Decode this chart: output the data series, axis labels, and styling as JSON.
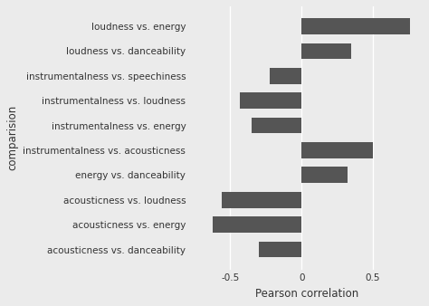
{
  "categories": [
    "acousticness vs. danceability",
    "acousticness vs. energy",
    "acousticness vs. loudness",
    "energy vs. danceability",
    "instrumentalness vs. acousticness",
    "instrumentalness vs. energy",
    "instrumentalness vs. loudness",
    "instrumentalness vs. speechiness",
    "loudness vs. danceability",
    "loudness vs. energy"
  ],
  "values": [
    -0.3,
    -0.62,
    -0.56,
    0.32,
    0.5,
    -0.35,
    -0.43,
    -0.22,
    0.35,
    0.76
  ],
  "bar_color": "#555555",
  "background_color": "#ebebeb",
  "panel_color": "#ebebeb",
  "grid_color": "#ffffff",
  "xlabel": "Pearson correlation",
  "ylabel": "comparision",
  "xlim": [
    -0.78,
    0.85
  ],
  "xticks": [
    -0.5,
    0.0,
    0.5
  ],
  "label_fontsize": 8.5,
  "tick_fontsize": 7.5,
  "ylabel_fontsize": 8.5
}
